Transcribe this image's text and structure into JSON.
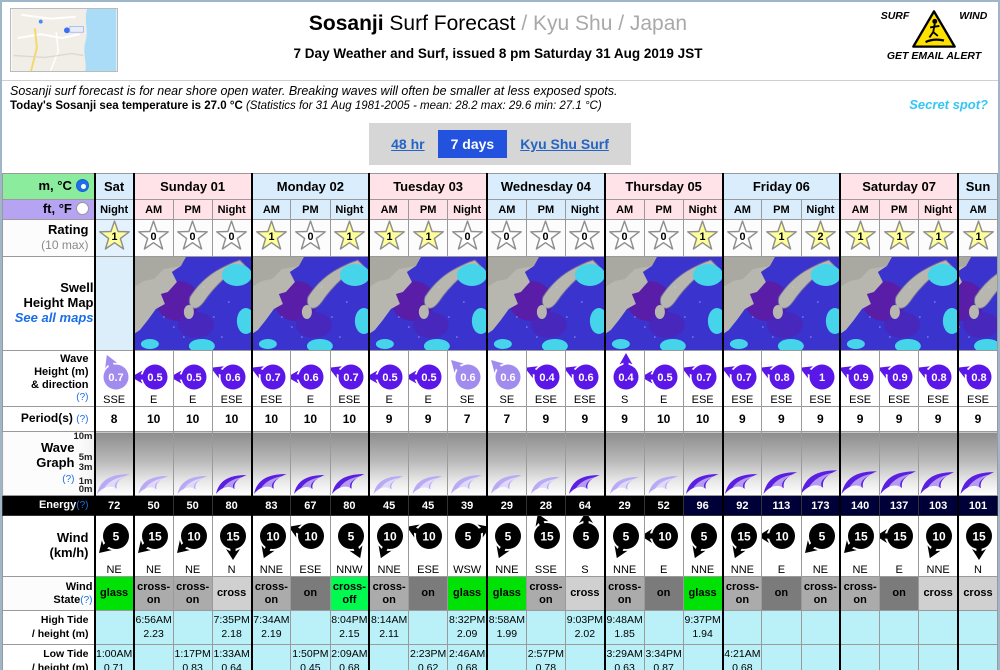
{
  "header": {
    "spot": "Sosanji",
    "title_suffix": " Surf Forecast ",
    "breadcrumb": "/ Kyu Shu / Japan",
    "subtitle": "7 Day Weather and Surf, issued 8 pm Saturday 31 Aug 2019 JST",
    "note1": "Sosanji surf forecast is for near shore open water. Breaking waves will often be smaller at less exposed spots.",
    "note2_bold": "Today's Sosanji sea temperature is 27.0 °C ",
    "note2_detail": "(Statistics for 31 Aug 1981-2005 - mean: 28.2 max: 29.6 min: 27.1 °C)",
    "secret_spot": "Secret spot?",
    "alert": {
      "surf": "SURF",
      "wind": "WIND",
      "get_email": "GET EMAIL ALERT"
    }
  },
  "tabs": [
    {
      "label": "48 hr",
      "active": false
    },
    {
      "label": "7 days",
      "active": true
    },
    {
      "label": "Kyu Shu Surf",
      "active": false
    }
  ],
  "units": {
    "metric": "m, °C",
    "imperial": "ft, °F"
  },
  "labels": {
    "rating": "Rating",
    "rating_sub": "(10 max)",
    "swell1": "Swell",
    "swell2": "Height Map",
    "see_all_maps": "See all maps",
    "wave1": "Wave",
    "wave2": "Height (m)",
    "wave3": "& direction",
    "help": "(?)",
    "period": "Period(s)",
    "graph1": "Wave",
    "graph2": "Graph",
    "energy": "Energy",
    "wind1": "Wind",
    "wind2": "(km/h)",
    "state1": "Wind",
    "state2": "State",
    "hitide1": "High Tide",
    "hitide2": "/ height (m)",
    "lotide1": "Low Tide",
    "lotide2": "/ height (m)",
    "axis": [
      "10m",
      "5m",
      "3m",
      "1m",
      "0m"
    ]
  },
  "days": [
    {
      "name": "Sat",
      "tone": "blue",
      "slots": [
        "Night"
      ],
      "has_map": false
    },
    {
      "name": "Sunday 01",
      "tone": "pink",
      "slots": [
        "AM",
        "PM",
        "Night"
      ],
      "has_map": true
    },
    {
      "name": "Monday 02",
      "tone": "blue",
      "slots": [
        "AM",
        "PM",
        "Night"
      ],
      "has_map": true
    },
    {
      "name": "Tuesday 03",
      "tone": "pink",
      "slots": [
        "AM",
        "PM",
        "Night"
      ],
      "has_map": true
    },
    {
      "name": "Wednesday 04",
      "tone": "blue",
      "slots": [
        "AM",
        "PM",
        "Night"
      ],
      "has_map": true
    },
    {
      "name": "Thursday 05",
      "tone": "pink",
      "slots": [
        "AM",
        "PM",
        "Night"
      ],
      "has_map": true
    },
    {
      "name": "Friday 06",
      "tone": "blue",
      "slots": [
        "AM",
        "PM",
        "Night"
      ],
      "has_map": true
    },
    {
      "name": "Saturday 07",
      "tone": "pink",
      "slots": [
        "AM",
        "PM",
        "Night"
      ],
      "has_map": true
    },
    {
      "name": "Sun",
      "tone": "blue",
      "slots": [
        "AM"
      ],
      "has_map": true
    }
  ],
  "forecast": {
    "ratings": [
      1,
      0,
      0,
      0,
      1,
      0,
      1,
      1,
      1,
      0,
      0,
      0,
      0,
      0,
      0,
      1,
      0,
      1,
      2,
      1,
      1,
      1,
      1
    ],
    "waves": [
      {
        "h": "0.7",
        "dir": "SSE",
        "light": true
      },
      {
        "h": "0.5",
        "dir": "E",
        "light": false
      },
      {
        "h": "0.5",
        "dir": "E",
        "light": false
      },
      {
        "h": "0.6",
        "dir": "ESE",
        "light": false
      },
      {
        "h": "0.7",
        "dir": "ESE",
        "light": false
      },
      {
        "h": "0.6",
        "dir": "E",
        "light": false
      },
      {
        "h": "0.7",
        "dir": "ESE",
        "light": false
      },
      {
        "h": "0.5",
        "dir": "E",
        "light": false
      },
      {
        "h": "0.5",
        "dir": "E",
        "light": false
      },
      {
        "h": "0.6",
        "dir": "SE",
        "light": true
      },
      {
        "h": "0.6",
        "dir": "SE",
        "light": true
      },
      {
        "h": "0.4",
        "dir": "ESE",
        "light": false
      },
      {
        "h": "0.6",
        "dir": "ESE",
        "light": false
      },
      {
        "h": "0.4",
        "dir": "S",
        "light": false
      },
      {
        "h": "0.5",
        "dir": "E",
        "light": false
      },
      {
        "h": "0.7",
        "dir": "ESE",
        "light": false
      },
      {
        "h": "0.7",
        "dir": "ESE",
        "light": false
      },
      {
        "h": "0.8",
        "dir": "ESE",
        "light": false
      },
      {
        "h": "1",
        "dir": "ESE",
        "light": false
      },
      {
        "h": "0.9",
        "dir": "ESE",
        "light": false
      },
      {
        "h": "0.9",
        "dir": "ESE",
        "light": false
      },
      {
        "h": "0.8",
        "dir": "ESE",
        "light": false
      },
      {
        "h": "0.8",
        "dir": "ESE",
        "light": false
      }
    ],
    "periods": [
      8,
      10,
      10,
      10,
      10,
      10,
      10,
      9,
      9,
      7,
      7,
      9,
      9,
      9,
      10,
      10,
      9,
      9,
      9,
      9,
      9,
      9,
      9
    ],
    "energies": [
      72,
      50,
      50,
      80,
      83,
      67,
      80,
      45,
      45,
      39,
      29,
      28,
      64,
      29,
      52,
      96,
      92,
      113,
      173,
      140,
      137,
      103,
      101
    ],
    "winds": [
      {
        "speed": "5",
        "dir": "NE"
      },
      {
        "speed": "15",
        "dir": "NE"
      },
      {
        "speed": "10",
        "dir": "NE"
      },
      {
        "speed": "15",
        "dir": "N"
      },
      {
        "speed": "10",
        "dir": "NNE"
      },
      {
        "speed": "10",
        "dir": "ESE"
      },
      {
        "speed": "5",
        "dir": "NNW"
      },
      {
        "speed": "10",
        "dir": "NNE"
      },
      {
        "speed": "10",
        "dir": "ESE"
      },
      {
        "speed": "5",
        "dir": "WSW"
      },
      {
        "speed": "5",
        "dir": "NNE"
      },
      {
        "speed": "15",
        "dir": "SSE"
      },
      {
        "speed": "5",
        "dir": "S"
      },
      {
        "speed": "5",
        "dir": "NNE"
      },
      {
        "speed": "10",
        "dir": "E"
      },
      {
        "speed": "5",
        "dir": "NNE"
      },
      {
        "speed": "15",
        "dir": "NNE"
      },
      {
        "speed": "10",
        "dir": "E"
      },
      {
        "speed": "5",
        "dir": "NE"
      },
      {
        "speed": "15",
        "dir": "NE"
      },
      {
        "speed": "15",
        "dir": "E"
      },
      {
        "speed": "10",
        "dir": "NNE"
      },
      {
        "speed": "15",
        "dir": "N"
      }
    ],
    "states": [
      "glass",
      "cross-on",
      "cross-on",
      "cross",
      "cross-on",
      "on",
      "cross-off",
      "cross-on",
      "on",
      "glass",
      "glass",
      "cross-on",
      "cross",
      "cross-on",
      "on",
      "glass",
      "cross-on",
      "on",
      "cross-on",
      "cross-on",
      "on",
      "cross",
      "cross"
    ],
    "high_tides": [
      null,
      {
        "time": "6:56AM",
        "height": "2.23"
      },
      null,
      {
        "time": "7:35PM",
        "height": "2.18"
      },
      {
        "time": "7:34AM",
        "height": "2.19"
      },
      null,
      {
        "time": "8:04PM",
        "height": "2.15"
      },
      {
        "time": "8:14AM",
        "height": "2.11"
      },
      null,
      {
        "time": "8:32PM",
        "height": "2.09"
      },
      {
        "time": "8:58AM",
        "height": "1.99"
      },
      null,
      {
        "time": "9:03PM",
        "height": "2.02"
      },
      {
        "time": "9:48AM",
        "height": "1.85"
      },
      null,
      {
        "time": "9:37PM",
        "height": "1.94"
      },
      null,
      null,
      null,
      null,
      null,
      null,
      null
    ],
    "low_tides": [
      {
        "time": "1:00AM",
        "height": "0.71"
      },
      null,
      {
        "time": "1:17PM",
        "height": "0.83"
      },
      {
        "time": "1:33AM",
        "height": "0.64"
      },
      null,
      {
        "time": "1:50PM",
        "height": "0.45"
      },
      {
        "time": "2:09AM",
        "height": "0.68"
      },
      null,
      {
        "time": "2:23PM",
        "height": "0.62"
      },
      {
        "time": "2:46AM",
        "height": "0.68"
      },
      null,
      {
        "time": "2:57PM",
        "height": "0.78"
      },
      null,
      {
        "time": "3:29AM",
        "height": "0.63"
      },
      {
        "time": "3:34PM",
        "height": "0.87"
      },
      null,
      {
        "time": "4:21AM",
        "height": "0.68"
      },
      null,
      null,
      null,
      null,
      null,
      null
    ]
  },
  "colors": {
    "day_pink": "#ffe3e8",
    "day_blue": "#d9edfc",
    "tab_active": "#2353de",
    "wave_purple": "#5a17e8",
    "wave_purple_light": "#a18bef",
    "energy_bg": "#000000",
    "energy_bg_high": "#000038",
    "tide_bg": "#baf1f8",
    "unit_metric_bg": "#8cec9e",
    "unit_imperial_bg": "#b6a3f2",
    "star_yellow": "#ffff99",
    "star_white": "#ffffff",
    "secret_spot": "#35c6f4",
    "states": {
      "glass": "#00e105",
      "cross-off": "#00fa50",
      "cross-on": "#ababab",
      "on": "#7b7b7b",
      "cross": "#d0d0d0"
    }
  }
}
